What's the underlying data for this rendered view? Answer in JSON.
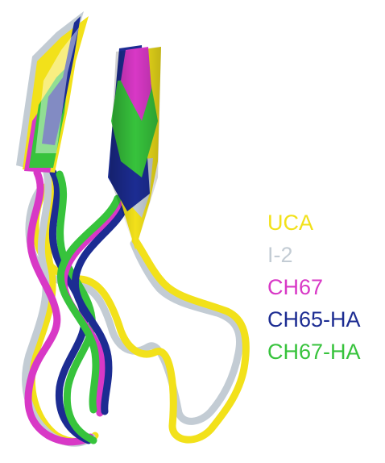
{
  "legend": {
    "entries": [
      {
        "label": "UCA",
        "color": "#f2e11a"
      },
      {
        "label": "I-2",
        "color": "#c3ccd4"
      },
      {
        "label": "CH67",
        "color": "#d838c6"
      },
      {
        "label": "CH65-HA",
        "color": "#1c2c92"
      },
      {
        "label": "CH67-HA",
        "color": "#37c33c"
      }
    ]
  },
  "colors": {
    "background": "#ffffff",
    "uca": "#f2e11a",
    "i2": "#c3ccd4",
    "ch67": "#d838c6",
    "ch65ha": "#1c2c92",
    "ch67ha": "#37c33c"
  }
}
